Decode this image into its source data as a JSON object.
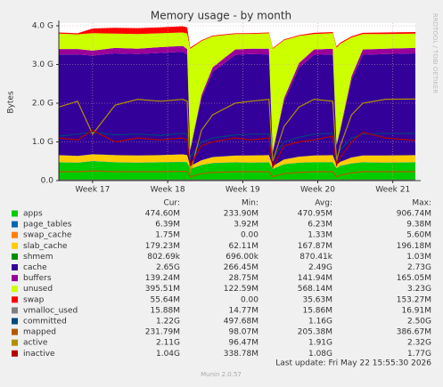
{
  "chart_data": {
    "type": "area",
    "title": "Memory usage - by month",
    "y_label": "Bytes",
    "watermark": "RRDTOOL / TOBI OETIKER",
    "x": [
      16.55,
      16.8,
      17.0,
      17.3,
      17.6,
      17.9,
      18.2,
      18.26,
      18.3,
      18.45,
      18.6,
      18.9,
      19.1,
      19.35,
      19.4,
      19.55,
      19.75,
      19.95,
      20.2,
      20.25,
      20.3,
      20.45,
      20.6,
      20.9,
      21.3
    ],
    "xlim": [
      16.55,
      21.3
    ],
    "xticks": [
      {
        "value": 17,
        "label": "Week 17"
      },
      {
        "value": 18,
        "label": "Week 18"
      },
      {
        "value": 19,
        "label": "Week 19"
      },
      {
        "value": 20,
        "label": "Week 20"
      },
      {
        "value": 21,
        "label": "Week 21"
      }
    ],
    "ylim": [
      0,
      4
    ],
    "yticks": [
      {
        "value": 0,
        "label": "0.0"
      },
      {
        "value": 1,
        "label": "1.0 G"
      },
      {
        "value": 2,
        "label": "2.0 G"
      },
      {
        "value": 3,
        "label": "3.0 G"
      },
      {
        "value": 4,
        "label": "4.0 G"
      }
    ],
    "grid": true,
    "legend_columns": [
      "Cur:",
      "Min:",
      "Avg:",
      "Max:"
    ],
    "series": [
      {
        "name": "apps",
        "type": "area",
        "color": "#00cc00",
        "stats": [
          "474.60M",
          "233.90M",
          "470.95M",
          "906.74M"
        ],
        "values": [
          0.47,
          0.46,
          0.5,
          0.47,
          0.46,
          0.47,
          0.48,
          0.47,
          0.3,
          0.4,
          0.45,
          0.47,
          0.46,
          0.47,
          0.3,
          0.42,
          0.46,
          0.47,
          0.47,
          0.32,
          0.38,
          0.44,
          0.47,
          0.46,
          0.47
        ]
      },
      {
        "name": "page_tables",
        "type": "area",
        "color": "#0066b3",
        "stats": [
          "6.39M",
          "3.92M",
          "6.23M",
          "9.38M"
        ],
        "values": [
          0.006,
          0.006,
          0.006,
          0.006,
          0.006,
          0.006,
          0.006,
          0.006,
          0.004,
          0.005,
          0.006,
          0.006,
          0.006,
          0.006,
          0.004,
          0.005,
          0.006,
          0.006,
          0.006,
          0.004,
          0.005,
          0.006,
          0.006,
          0.006,
          0.006
        ]
      },
      {
        "name": "swap_cache",
        "type": "area",
        "color": "#ff8000",
        "stats": [
          "1.75M",
          "0.00",
          "1.33M",
          "5.60M"
        ],
        "values": [
          0.002,
          0.002,
          0.003,
          0.002,
          0.002,
          0.002,
          0.002,
          0.002,
          0,
          0.001,
          0.001,
          0.001,
          0.002,
          0.002,
          0,
          0.001,
          0.001,
          0.002,
          0.002,
          0,
          0.001,
          0.001,
          0.002,
          0.002,
          0.002
        ]
      },
      {
        "name": "slab_cache",
        "type": "area",
        "color": "#ffcc00",
        "stats": [
          "179.23M",
          "62.11M",
          "167.87M",
          "196.18M"
        ],
        "values": [
          0.18,
          0.17,
          0.17,
          0.18,
          0.18,
          0.18,
          0.19,
          0.18,
          0.07,
          0.12,
          0.15,
          0.17,
          0.18,
          0.18,
          0.07,
          0.12,
          0.15,
          0.17,
          0.18,
          0.08,
          0.1,
          0.15,
          0.17,
          0.18,
          0.18
        ]
      },
      {
        "name": "shmem",
        "type": "area",
        "color": "#008f00",
        "stats": [
          "802.69k",
          "696.00k",
          "870.41k",
          "1.03M"
        ],
        "values": [
          0.0008,
          0.0008,
          0.0009,
          0.0008,
          0.0008,
          0.0008,
          0.0009,
          0.0008,
          0.0007,
          0.0008,
          0.0008,
          0.0008,
          0.0009,
          0.0008,
          0.0007,
          0.0008,
          0.0008,
          0.0008,
          0.0009,
          0.0007,
          0.0008,
          0.0008,
          0.0008,
          0.0008,
          0.0008
        ]
      },
      {
        "name": "cache",
        "type": "area",
        "color": "#330099",
        "stats": [
          "2.65G",
          "266.45M",
          "2.49G",
          "2.73G"
        ],
        "values": [
          2.6,
          2.62,
          2.55,
          2.63,
          2.62,
          2.64,
          2.65,
          2.6,
          0.4,
          1.6,
          2.2,
          2.6,
          2.62,
          2.6,
          0.35,
          1.5,
          2.3,
          2.6,
          2.6,
          0.5,
          0.8,
          2.0,
          2.6,
          2.62,
          2.63
        ]
      },
      {
        "name": "buffers",
        "type": "area",
        "color": "#990099",
        "stats": [
          "139.24M",
          "28.75M",
          "141.94M",
          "165.05M"
        ],
        "values": [
          0.14,
          0.14,
          0.13,
          0.14,
          0.14,
          0.15,
          0.15,
          0.14,
          0.03,
          0.08,
          0.12,
          0.14,
          0.14,
          0.15,
          0.03,
          0.08,
          0.12,
          0.14,
          0.15,
          0.03,
          0.05,
          0.1,
          0.14,
          0.14,
          0.14
        ]
      },
      {
        "name": "unused",
        "type": "area",
        "color": "#ccff00",
        "stats": [
          "395.51M",
          "122.59M",
          "568.14M",
          "3.23G"
        ],
        "values": [
          0.4,
          0.38,
          0.45,
          0.37,
          0.38,
          0.36,
          0.35,
          0.4,
          2.6,
          1.4,
          0.8,
          0.4,
          0.38,
          0.4,
          2.65,
          1.5,
          0.7,
          0.4,
          0.4,
          2.5,
          2.2,
          1.0,
          0.4,
          0.38,
          0.37
        ]
      },
      {
        "name": "swap",
        "type": "area",
        "color": "#ff0000",
        "stats": [
          "55.64M",
          "0.00",
          "35.63M",
          "153.27M"
        ],
        "values": [
          0.03,
          0.03,
          0.12,
          0.15,
          0.15,
          0.15,
          0.16,
          0.16,
          0.03,
          0.02,
          0.02,
          0.02,
          0.02,
          0.02,
          0.02,
          0.02,
          0.02,
          0.03,
          0.03,
          0.03,
          0.03,
          0.03,
          0.03,
          0.04,
          0.04
        ]
      },
      {
        "name": "vmalloc_used",
        "type": "line",
        "color": "#808080",
        "stats": [
          "15.88M",
          "14.77M",
          "15.86M",
          "16.91M"
        ],
        "values": [
          0.016,
          0.016,
          0.016,
          0.016,
          0.016,
          0.016,
          0.016,
          0.016,
          0.015,
          0.016,
          0.016,
          0.016,
          0.016,
          0.016,
          0.015,
          0.016,
          0.016,
          0.016,
          0.016,
          0.015,
          0.016,
          0.016,
          0.016,
          0.016,
          0.016
        ]
      },
      {
        "name": "committed",
        "type": "line",
        "color": "#00487d",
        "stats": [
          "1.22G",
          "497.68M",
          "1.16G",
          "2.50G"
        ],
        "values": [
          1.15,
          1.2,
          1.25,
          1.18,
          1.2,
          1.17,
          1.22,
          1.2,
          0.6,
          1.0,
          1.1,
          1.18,
          1.2,
          1.2,
          0.55,
          1.0,
          1.12,
          1.2,
          1.22,
          0.6,
          0.8,
          1.1,
          1.2,
          1.22,
          1.22
        ]
      },
      {
        "name": "mapped",
        "type": "line",
        "color": "#b35a00",
        "stats": [
          "231.79M",
          "98.07M",
          "205.38M",
          "386.67M"
        ],
        "values": [
          0.23,
          0.23,
          0.25,
          0.23,
          0.23,
          0.23,
          0.24,
          0.23,
          0.1,
          0.18,
          0.21,
          0.23,
          0.23,
          0.23,
          0.1,
          0.18,
          0.21,
          0.23,
          0.23,
          0.1,
          0.14,
          0.2,
          0.23,
          0.23,
          0.23
        ]
      },
      {
        "name": "active",
        "type": "line",
        "color": "#b38f00",
        "stats": [
          "2.11G",
          "96.47M",
          "1.91G",
          "2.32G"
        ],
        "values": [
          1.9,
          2.05,
          1.2,
          1.95,
          2.1,
          2.05,
          2.1,
          2.05,
          0.2,
          1.3,
          1.7,
          2.0,
          2.05,
          2.1,
          0.5,
          1.4,
          1.9,
          2.1,
          2.05,
          0.5,
          0.9,
          1.7,
          2.0,
          2.1,
          2.11
        ]
      },
      {
        "name": "inactive",
        "type": "line",
        "color": "#b30000",
        "stats": [
          "1.04G",
          "338.78M",
          "1.08G",
          "1.77G"
        ],
        "values": [
          1.1,
          1.05,
          1.3,
          1.0,
          1.1,
          1.05,
          1.1,
          1.05,
          0.4,
          0.9,
          1.0,
          1.1,
          1.05,
          1.1,
          0.35,
          0.9,
          1.0,
          1.05,
          1.15,
          0.4,
          0.6,
          1.0,
          1.25,
          1.1,
          1.04
        ]
      }
    ],
    "last_update": "Last update: Fri May 22 15:55:30 2026",
    "version": "Munin 2.0.57"
  }
}
